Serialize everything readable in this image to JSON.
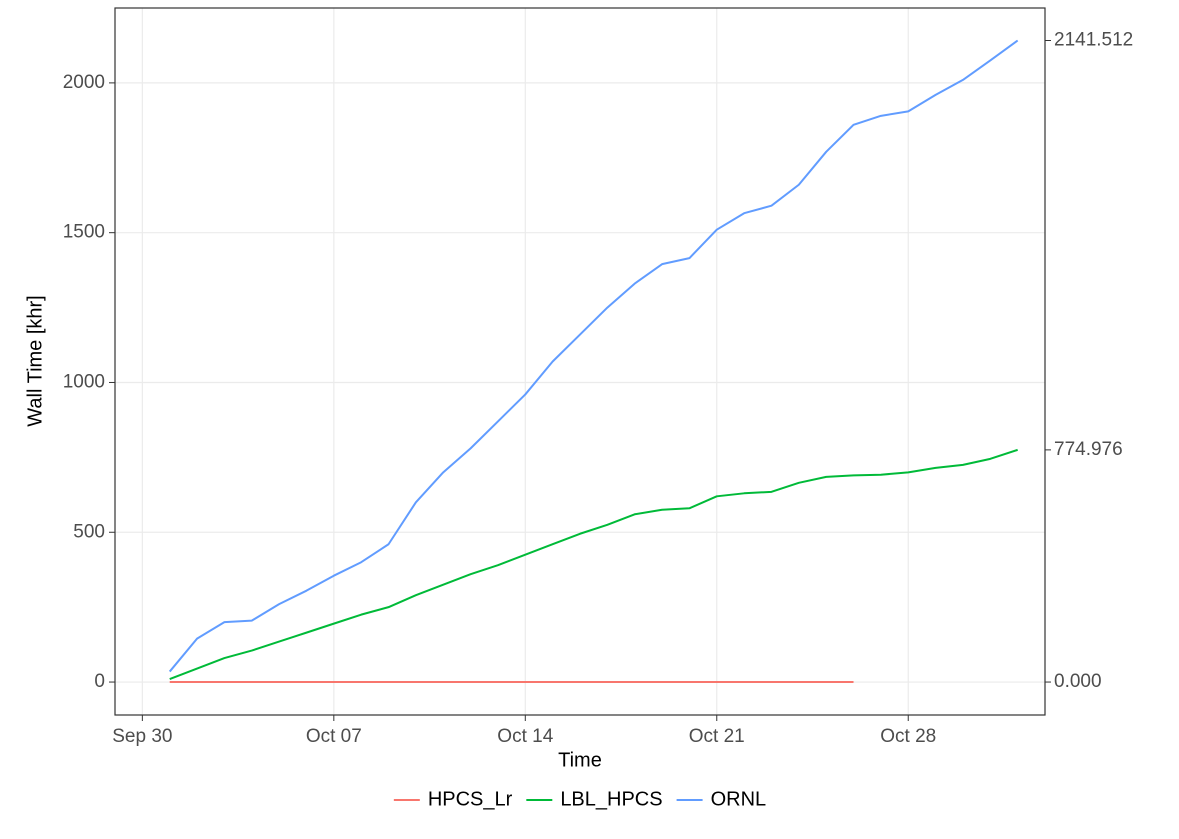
{
  "chart_data": {
    "type": "line",
    "x_label": "Time",
    "y_label": "Wall Time [khr]",
    "x": [
      "Oct 01",
      "Oct 02",
      "Oct 03",
      "Oct 04",
      "Oct 05",
      "Oct 06",
      "Oct 07",
      "Oct 08",
      "Oct 09",
      "Oct 10",
      "Oct 11",
      "Oct 12",
      "Oct 13",
      "Oct 14",
      "Oct 15",
      "Oct 16",
      "Oct 17",
      "Oct 18",
      "Oct 19",
      "Oct 20",
      "Oct 21",
      "Oct 22",
      "Oct 23",
      "Oct 24",
      "Oct 25",
      "Oct 26",
      "Oct 27",
      "Oct 28",
      "Oct 29",
      "Oct 30",
      "Oct 31",
      "Nov 01"
    ],
    "series": [
      {
        "name": "HPCS_Lr",
        "color": "#F8766D",
        "values": [
          0,
          0,
          0,
          0,
          0,
          0,
          0,
          0,
          0,
          0,
          0,
          0,
          0,
          0,
          0,
          0,
          0,
          0,
          0,
          0,
          0,
          0,
          0,
          0,
          0,
          0,
          null,
          null,
          null,
          null,
          null,
          null
        ]
      },
      {
        "name": "LBL_HPCS",
        "color": "#00BA38",
        "values": [
          10,
          45,
          80,
          105,
          135,
          165,
          195,
          225,
          250,
          290,
          325,
          360,
          390,
          425,
          460,
          495,
          525,
          560,
          575,
          580,
          620,
          630,
          635,
          665,
          685,
          690,
          692,
          700,
          715,
          725,
          745,
          774.976
        ]
      },
      {
        "name": "ORNL",
        "color": "#619CFF",
        "values": [
          35,
          145,
          200,
          205,
          260,
          305,
          355,
          400,
          460,
          600,
          700,
          780,
          870,
          960,
          1070,
          1160,
          1250,
          1330,
          1395,
          1415,
          1510,
          1565,
          1590,
          1660,
          1770,
          1860,
          1890,
          1905,
          1960,
          2010,
          2075,
          2141.512
        ]
      }
    ],
    "xlim": [
      "Sep 29",
      "Nov 02"
    ],
    "xticks": [
      "Sep 30",
      "Oct 07",
      "Oct 14",
      "Oct 21",
      "Oct 28"
    ],
    "ylim": [
      -110,
      2250
    ],
    "yticks": [
      0,
      500,
      1000,
      1500,
      2000
    ],
    "y2lim": [
      -110,
      2250
    ],
    "y2ticks": [
      {
        "value": 0,
        "label": "0.000"
      },
      774.976,
      2141.512
    ],
    "grid": true,
    "legend": "bottom"
  }
}
